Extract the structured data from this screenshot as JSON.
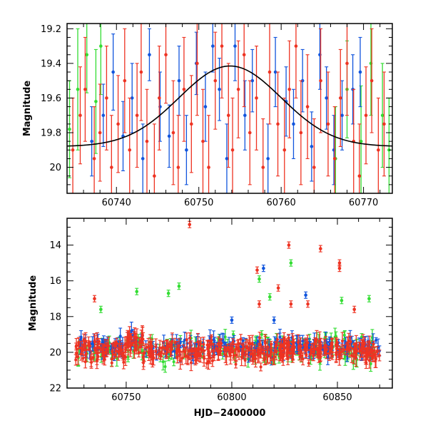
{
  "figure": {
    "colors": {
      "green": "#33dd33",
      "blue": "#1155dd",
      "red": "#ee3322",
      "curve": "#000000",
      "frame": "#000000"
    }
  },
  "chart_data": [
    {
      "type": "scatter",
      "panel": "top",
      "title": "",
      "xlabel": "",
      "ylabel": "Magnitude",
      "xlim": [
        60734,
        60773.5
      ],
      "ylim": [
        20.15,
        19.17
      ],
      "y_inverted": true,
      "xticks": [
        60740,
        60750,
        60760,
        60770
      ],
      "yticks": [
        19.2,
        19.4,
        19.6,
        19.8,
        20
      ],
      "ytick_labels": [
        "19.2",
        "19.4",
        "19.6",
        "19.8",
        "20"
      ],
      "model_curve": {
        "shape": "gaussian",
        "baseline": 19.88,
        "peak": 19.415,
        "t0": 60753.8,
        "sigma": 6.2,
        "x": [
          60734,
          60738,
          60742,
          60745,
          60748,
          60750,
          60752,
          60753.8,
          60756,
          60758,
          60760,
          60763,
          60766,
          60770,
          60773.5
        ],
        "y": [
          19.87,
          19.84,
          19.78,
          19.71,
          19.61,
          19.54,
          19.46,
          19.415,
          19.45,
          19.51,
          19.58,
          19.68,
          19.77,
          19.84,
          19.87
        ]
      },
      "series": [
        {
          "color": "green",
          "x": [
            60734.3,
            60735.3,
            60736.4,
            60737.5,
            60738.1,
            60766.6,
            60768.0,
            60769.7,
            60770.9,
            60772.3,
            60773.1
          ],
          "y": [
            19.78,
            19.55,
            19.35,
            19.62,
            19.3,
            19.95,
            19.55,
            19.85,
            19.4,
            19.7,
            19.9
          ],
          "err": [
            0.28,
            0.35,
            0.22,
            0.3,
            0.28,
            0.3,
            0.28,
            0.32,
            0.3,
            0.3,
            0.3
          ]
        },
        {
          "color": "blue",
          "x": [
            60737.0,
            60738.4,
            60739.6,
            60740.8,
            60741.9,
            60743.2,
            60744.0,
            60745.3,
            60746.4,
            60747.6,
            60748.5,
            60749.7,
            60750.8,
            60751.7,
            60752.5,
            60753.4,
            60754.4,
            60755.6,
            60756.5,
            60758.4,
            60759.3,
            60760.6,
            60761.5,
            60762.6,
            60763.7,
            60764.7,
            60765.5,
            60766.4,
            60767.4,
            60768.7,
            60769.6
          ],
          "y": [
            19.85,
            19.7,
            19.45,
            19.82,
            19.6,
            19.95,
            19.35,
            19.65,
            19.82,
            19.5,
            19.9,
            19.4,
            19.65,
            19.3,
            19.55,
            19.95,
            19.3,
            19.7,
            19.5,
            19.95,
            19.45,
            19.62,
            19.75,
            19.5,
            19.88,
            19.35,
            19.6,
            19.9,
            19.7,
            19.55,
            19.45
          ],
          "err": [
            0.2,
            0.18,
            0.22,
            0.2,
            0.2,
            0.2,
            0.15,
            0.2,
            0.18,
            0.2,
            0.2,
            0.18,
            0.2,
            0.15,
            0.18,
            0.2,
            0.2,
            0.2,
            0.18,
            0.2,
            0.2,
            0.2,
            0.2,
            0.18,
            0.2,
            0.2,
            0.18,
            0.2,
            0.2,
            0.2,
            0.2
          ]
        },
        {
          "color": "red",
          "x": [
            60734.7,
            60735.6,
            60736.2,
            60737.3,
            60738.0,
            60738.8,
            60739.4,
            60740.2,
            60741.0,
            60741.6,
            60742.5,
            60743.0,
            60743.7,
            60744.6,
            60745.2,
            60746.0,
            60746.9,
            60747.5,
            60748.2,
            60749.1,
            60749.8,
            60750.5,
            60751.2,
            60752.0,
            60752.8,
            60753.6,
            60754.1,
            60754.8,
            60755.5,
            60756.2,
            60757.0,
            60757.8,
            60758.6,
            60759.6,
            60760.4,
            60761.0,
            60761.8,
            60762.4,
            60763.2,
            60764.0,
            60764.8,
            60765.7,
            60766.5,
            60767.2,
            60768.0,
            60768.8,
            60769.5,
            60770.3,
            60771.0,
            60771.8,
            60772.5
          ],
          "y": [
            19.9,
            19.7,
            19.55,
            19.95,
            19.8,
            19.6,
            20.0,
            19.75,
            19.5,
            19.9,
            19.7,
            19.45,
            19.85,
            20.05,
            19.6,
            19.35,
            19.8,
            20.0,
            19.55,
            19.75,
            19.4,
            19.85,
            20.0,
            19.5,
            19.3,
            19.7,
            19.9,
            19.55,
            19.35,
            19.8,
            19.6,
            20.0,
            19.45,
            19.75,
            19.9,
            19.55,
            19.3,
            19.8,
            19.65,
            20.0,
            19.5,
            19.75,
            19.95,
            19.6,
            19.4,
            19.85,
            20.05,
            19.7,
            19.5,
            19.9,
            19.75
          ],
          "err": [
            0.3,
            0.28,
            0.3,
            0.3,
            0.28,
            0.3,
            0.3,
            0.28,
            0.3,
            0.3,
            0.3,
            0.28,
            0.3,
            0.3,
            0.3,
            0.28,
            0.3,
            0.3,
            0.3,
            0.28,
            0.3,
            0.3,
            0.3,
            0.28,
            0.3,
            0.3,
            0.3,
            0.28,
            0.3,
            0.3,
            0.3,
            0.28,
            0.3,
            0.3,
            0.3,
            0.28,
            0.3,
            0.3,
            0.3,
            0.28,
            0.3,
            0.3,
            0.3,
            0.28,
            0.3,
            0.3,
            0.3,
            0.28,
            0.3,
            0.3,
            0.3
          ]
        }
      ]
    },
    {
      "type": "scatter",
      "panel": "bottom",
      "title": "",
      "xlabel": "HJD−2400000",
      "ylabel": "Magnitude",
      "xlim": [
        60722,
        60876
      ],
      "ylim": [
        22.0,
        12.5
      ],
      "y_inverted": true,
      "xticks": [
        60750,
        60800,
        60850
      ],
      "yticks": [
        14,
        16,
        18,
        20,
        22
      ],
      "ytick_labels": [
        "14",
        "16",
        "18",
        "20",
        "22"
      ],
      "outliers": [
        {
          "color": "red",
          "x": 60780,
          "y": 12.85
        },
        {
          "color": "red",
          "x": 60827,
          "y": 14.0
        },
        {
          "color": "red",
          "x": 60842,
          "y": 14.2
        },
        {
          "color": "red",
          "x": 60851,
          "y": 15.0
        },
        {
          "color": "red",
          "x": 60851,
          "y": 15.3
        },
        {
          "color": "red",
          "x": 60812,
          "y": 15.4
        },
        {
          "color": "blue",
          "x": 60815,
          "y": 15.3
        },
        {
          "color": "green",
          "x": 60828,
          "y": 15.0
        },
        {
          "color": "green",
          "x": 60813,
          "y": 15.9
        },
        {
          "color": "red",
          "x": 60822,
          "y": 16.4
        },
        {
          "color": "green",
          "x": 60775,
          "y": 16.3
        },
        {
          "color": "green",
          "x": 60770,
          "y": 16.7
        },
        {
          "color": "green",
          "x": 60755,
          "y": 16.6
        },
        {
          "color": "green",
          "x": 60818,
          "y": 16.9
        },
        {
          "color": "blue",
          "x": 60835,
          "y": 16.8
        },
        {
          "color": "red",
          "x": 60735,
          "y": 17.0
        },
        {
          "color": "green",
          "x": 60865,
          "y": 17.0
        },
        {
          "color": "red",
          "x": 60813,
          "y": 17.3
        },
        {
          "color": "red",
          "x": 60828,
          "y": 17.3
        },
        {
          "color": "red",
          "x": 60836,
          "y": 17.3
        },
        {
          "color": "green",
          "x": 60852,
          "y": 17.1
        },
        {
          "color": "red",
          "x": 60858,
          "y": 17.6
        },
        {
          "color": "green",
          "x": 60738,
          "y": 17.6
        },
        {
          "color": "blue",
          "x": 60800,
          "y": 18.2
        },
        {
          "color": "blue",
          "x": 60820,
          "y": 18.2
        }
      ],
      "series": [
        {
          "color": "green",
          "x_range": [
            60726,
            60870
          ],
          "baseline_mag": 19.85,
          "scatter": 0.55,
          "n_points": 170
        },
        {
          "color": "blue",
          "x_range": [
            60728,
            60870
          ],
          "baseline_mag": 19.7,
          "scatter": 0.35,
          "n_points": 230
        },
        {
          "color": "red",
          "x_range": [
            60726,
            60870
          ],
          "baseline_mag": 19.9,
          "scatter": 0.45,
          "n_points": 420
        }
      ]
    }
  ]
}
